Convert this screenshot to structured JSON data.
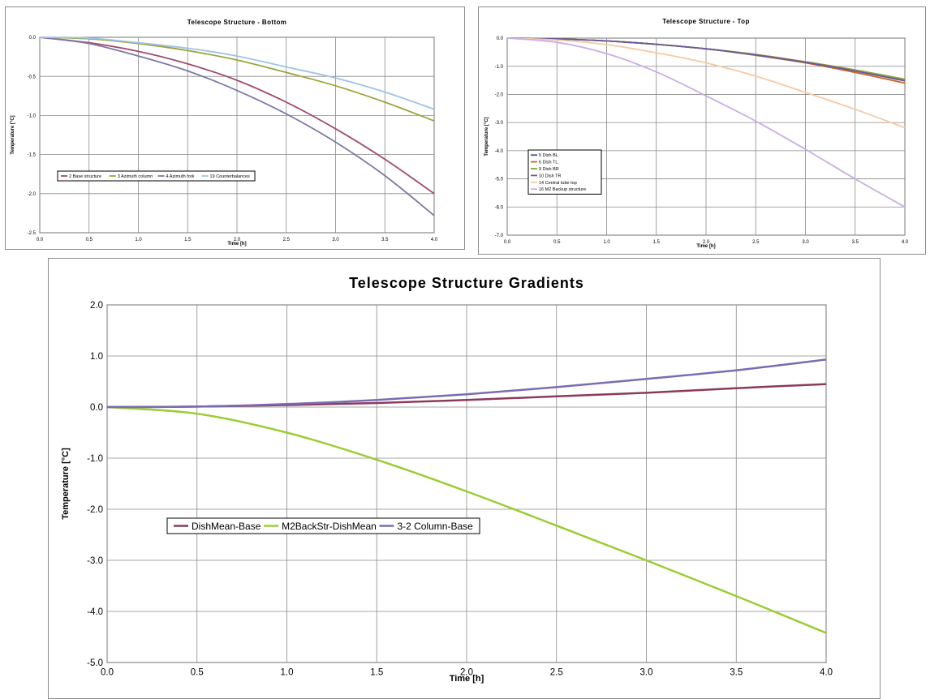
{
  "chart_data": [
    {
      "id": "bottom",
      "type": "line",
      "title": "Telescope Structure - Bottom",
      "xlabel": "Time [h]",
      "ylabel": "Temperature [°C]",
      "xlim": [
        0,
        4
      ],
      "ylim": [
        -2.5,
        0
      ],
      "grid": true,
      "legend": "center-left",
      "x_ticks": [
        "0.0",
        "0.5",
        "1.0",
        "1.5",
        "2.0",
        "2.5",
        "3.0",
        "3.5",
        "4.0"
      ],
      "y_ticks": [
        "0.0",
        "-0.5",
        "-1.0",
        "-1.5",
        "-2.0",
        "-2.5"
      ],
      "x": [
        0,
        0.5,
        1,
        1.5,
        2,
        2.5,
        3,
        3.5,
        4
      ],
      "series": [
        {
          "name": "2 Base structure",
          "color": "#a14c6c",
          "values": [
            0,
            -0.07,
            -0.18,
            -0.34,
            -0.55,
            -0.83,
            -1.17,
            -1.56,
            -2.0
          ]
        },
        {
          "name": "3 Azimuth column",
          "color": "#9aa43a",
          "values": [
            0,
            -0.02,
            -0.08,
            -0.17,
            -0.29,
            -0.45,
            -0.62,
            -0.83,
            -1.07
          ]
        },
        {
          "name": "4 Azimuth fork",
          "color": "#7e78a8",
          "values": [
            0,
            -0.08,
            -0.24,
            -0.43,
            -0.68,
            -0.98,
            -1.34,
            -1.77,
            -2.28
          ]
        },
        {
          "name": "19 Counterbalances",
          "color": "#9dc3e6",
          "values": [
            0,
            -0.01,
            -0.07,
            -0.14,
            -0.24,
            -0.38,
            -0.52,
            -0.7,
            -0.92
          ]
        }
      ]
    },
    {
      "id": "top",
      "type": "line",
      "title": "Telescope Structure - Top",
      "xlabel": "Time [h]",
      "ylabel": "Temperature [°C]",
      "xlim": [
        0,
        4
      ],
      "ylim": [
        -7,
        0
      ],
      "grid": true,
      "legend": "center-left",
      "x_ticks": [
        "0.0",
        "0.5",
        "1.0",
        "1.5",
        "2.0",
        "2.5",
        "3.0",
        "3.5",
        "4.0"
      ],
      "y_ticks": [
        "0.0",
        "-1.0",
        "-2.0",
        "-3.0",
        "-4.0",
        "-5.0",
        "-6.0",
        "-7.0"
      ],
      "x": [
        0,
        0.5,
        1,
        1.5,
        2,
        2.5,
        3,
        3.5,
        4
      ],
      "series": [
        {
          "name": "5 Dish BL",
          "color": "#4a5a8c",
          "values": [
            0,
            -0.03,
            -0.1,
            -0.22,
            -0.38,
            -0.59,
            -0.85,
            -1.15,
            -1.48
          ]
        },
        {
          "name": "6 Dish TL",
          "color": "#d0622a",
          "values": [
            0,
            -0.03,
            -0.1,
            -0.22,
            -0.38,
            -0.61,
            -0.88,
            -1.22,
            -1.6
          ]
        },
        {
          "name": "9 Dish BR",
          "color": "#8aa03a",
          "values": [
            0,
            -0.03,
            -0.1,
            -0.22,
            -0.38,
            -0.58,
            -0.84,
            -1.13,
            -1.46
          ]
        },
        {
          "name": "10 Dish TR",
          "color": "#6a5a9a",
          "values": [
            0,
            -0.03,
            -0.1,
            -0.22,
            -0.38,
            -0.6,
            -0.86,
            -1.17,
            -1.52
          ]
        },
        {
          "name": "14 Central tube top",
          "color": "#f5c9a6",
          "values": [
            0,
            -0.07,
            -0.23,
            -0.52,
            -0.88,
            -1.35,
            -1.93,
            -2.53,
            -3.18
          ]
        },
        {
          "name": "16 M2 Backup structure",
          "color": "#c8aee6",
          "values": [
            0,
            -0.15,
            -0.55,
            -1.2,
            -2.05,
            -2.95,
            -3.95,
            -5.0,
            -6.0
          ]
        }
      ]
    },
    {
      "id": "gradients",
      "type": "line",
      "title": "Telescope Structure Gradients",
      "xlabel": "Time [h]",
      "ylabel": "Temperature [°C]",
      "xlim": [
        0,
        4
      ],
      "ylim": [
        -5,
        2
      ],
      "grid": true,
      "legend": "center-left",
      "x_ticks": [
        "0.0",
        "0.5",
        "1.0",
        "1.5",
        "2.0",
        "2.5",
        "3.0",
        "3.5",
        "4.0"
      ],
      "y_ticks": [
        "2.0",
        "1.0",
        "0.0",
        "-1.0",
        "-2.0",
        "-3.0",
        "-4.0",
        "-5.0"
      ],
      "x": [
        0,
        0.5,
        1,
        1.5,
        2,
        2.5,
        3,
        3.5,
        4
      ],
      "series": [
        {
          "name": "DishMean-Base",
          "color": "#8c3a5c",
          "values": [
            0,
            0.01,
            0.04,
            0.08,
            0.14,
            0.21,
            0.28,
            0.37,
            0.45
          ]
        },
        {
          "name": "M2BackStr-DishMean",
          "color": "#9acd32",
          "values": [
            0,
            -0.13,
            -0.5,
            -1.03,
            -1.65,
            -2.32,
            -3.0,
            -3.7,
            -4.42
          ]
        },
        {
          "name": "3-2 Column-Base",
          "color": "#7a6cb0",
          "values": [
            0,
            0.01,
            0.06,
            0.14,
            0.25,
            0.39,
            0.55,
            0.72,
            0.93
          ]
        }
      ]
    }
  ]
}
